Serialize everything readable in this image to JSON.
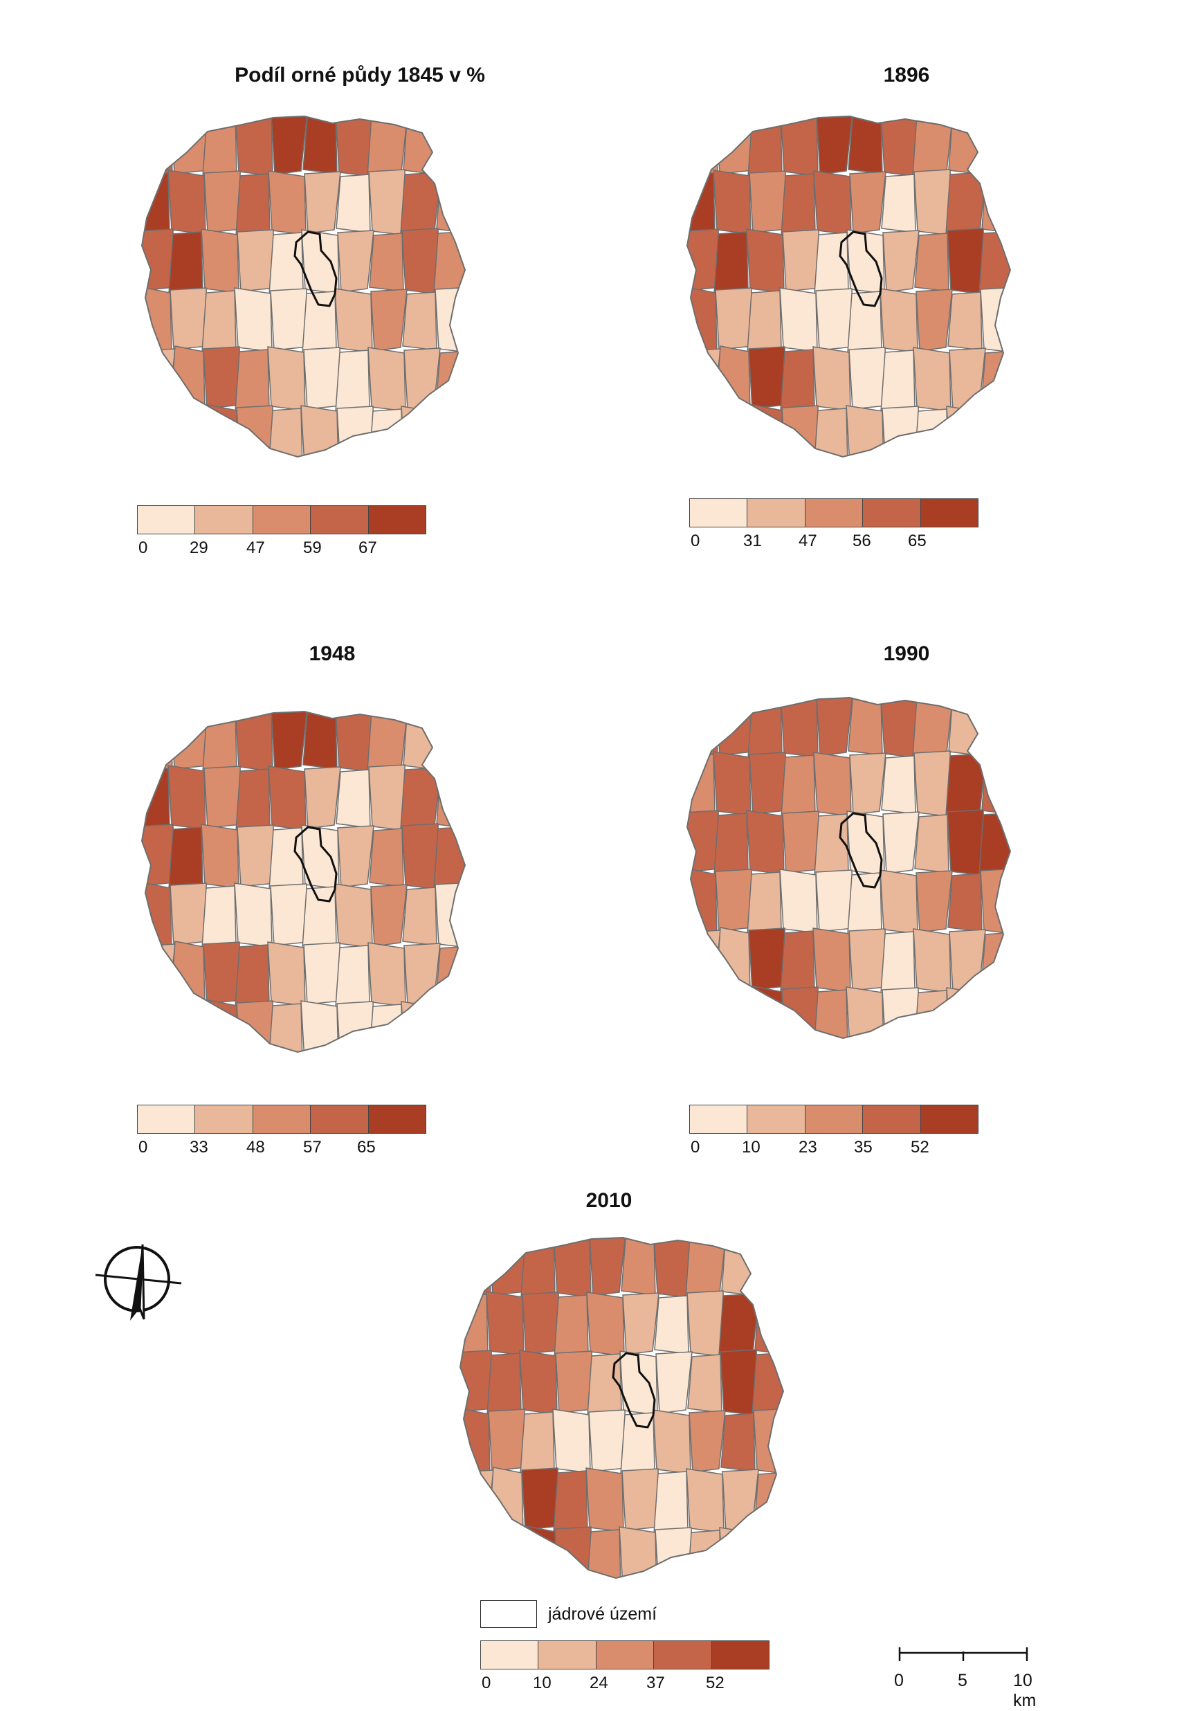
{
  "palette": [
    "#fbe7d4",
    "#e9b799",
    "#d98d6d",
    "#c4654a",
    "#aa3e25"
  ],
  "border_color": "#6e6e6e",
  "core_color": "#111111",
  "panels": [
    {
      "title": "Podíl orné půdy 1845 v %",
      "legend_ticks": [
        "0",
        "29",
        "47",
        "59",
        "67"
      ],
      "classes": [
        3,
        2,
        2,
        3,
        4,
        4,
        3,
        2,
        2,
        3,
        4,
        3,
        2,
        3,
        2,
        1,
        0,
        1,
        3,
        2,
        3,
        4,
        2,
        1,
        0,
        0,
        1,
        2,
        3,
        2,
        2,
        1,
        1,
        0,
        0,
        0,
        1,
        2,
        1,
        0,
        1,
        2,
        3,
        2,
        1,
        0,
        0,
        1,
        1,
        2,
        3,
        4,
        3,
        2,
        1,
        1,
        0,
        0,
        1,
        2
      ]
    },
    {
      "title": "1896",
      "legend_ticks": [
        "0",
        "31",
        "47",
        "56",
        "65"
      ],
      "classes": [
        2,
        2,
        3,
        3,
        4,
        4,
        3,
        2,
        2,
        3,
        4,
        3,
        2,
        3,
        3,
        2,
        0,
        1,
        3,
        2,
        3,
        4,
        3,
        1,
        0,
        0,
        1,
        2,
        4,
        3,
        3,
        1,
        1,
        0,
        0,
        0,
        1,
        2,
        1,
        0,
        1,
        2,
        4,
        3,
        1,
        0,
        0,
        1,
        1,
        2,
        3,
        4,
        3,
        2,
        1,
        1,
        0,
        0,
        1,
        2
      ]
    },
    {
      "title": "1948",
      "legend_ticks": [
        "0",
        "33",
        "48",
        "57",
        "65"
      ],
      "classes": [
        2,
        2,
        2,
        3,
        4,
        4,
        3,
        2,
        1,
        3,
        4,
        3,
        2,
        3,
        3,
        1,
        0,
        1,
        3,
        2,
        3,
        4,
        2,
        1,
        0,
        0,
        1,
        2,
        3,
        3,
        3,
        1,
        0,
        0,
        0,
        0,
        1,
        2,
        1,
        0,
        1,
        2,
        3,
        3,
        1,
        0,
        0,
        1,
        1,
        2,
        3,
        4,
        3,
        2,
        1,
        0,
        0,
        0,
        1,
        2
      ]
    },
    {
      "title": "1990",
      "legend_ticks": [
        "0",
        "10",
        "23",
        "35",
        "52"
      ],
      "classes": [
        3,
        3,
        3,
        3,
        3,
        2,
        3,
        2,
        1,
        1,
        2,
        3,
        3,
        2,
        2,
        1,
        0,
        1,
        4,
        3,
        3,
        3,
        3,
        2,
        1,
        0,
        0,
        1,
        4,
        4,
        3,
        2,
        1,
        0,
        0,
        0,
        1,
        2,
        3,
        2,
        1,
        1,
        4,
        3,
        2,
        1,
        0,
        1,
        1,
        2,
        2,
        3,
        4,
        3,
        2,
        1,
        0,
        1,
        1,
        2
      ]
    },
    {
      "title": "2010",
      "legend_ticks": [
        "0",
        "10",
        "24",
        "37",
        "52"
      ],
      "classes": [
        3,
        3,
        3,
        3,
        3,
        2,
        3,
        2,
        1,
        1,
        2,
        3,
        3,
        2,
        2,
        1,
        0,
        1,
        4,
        3,
        3,
        3,
        3,
        2,
        1,
        0,
        0,
        1,
        4,
        3,
        3,
        2,
        1,
        0,
        0,
        0,
        1,
        2,
        3,
        2,
        1,
        1,
        4,
        3,
        2,
        1,
        0,
        1,
        1,
        2,
        2,
        4,
        4,
        3,
        2,
        1,
        0,
        1,
        1,
        2
      ]
    }
  ],
  "core_legend_label": "jádrové území",
  "scalebar": {
    "labels": [
      "0",
      "5",
      "10 km"
    ]
  },
  "north_arrow_icon": "north-arrow-icon"
}
